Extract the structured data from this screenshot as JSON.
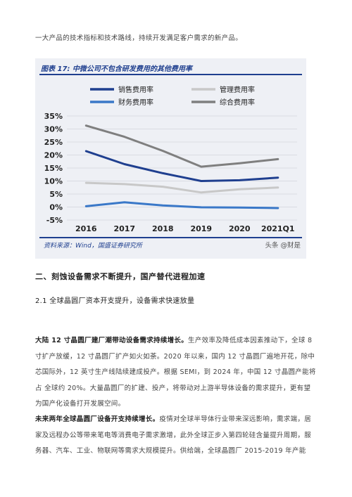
{
  "top_text": "一大产品的技术指标和技术路线，持续开发满足客户需求的新产品。",
  "figure": {
    "title": "图表 17: 中微公司不包含研发费用的其他费用率",
    "source": "资料来源：Wind，国盛证券研究所",
    "watermark": "头条 @财是"
  },
  "chart_data": {
    "type": "line",
    "categories": [
      "2016",
      "2017",
      "2018",
      "2019",
      "2020",
      "2021Q1"
    ],
    "y_ticks": [
      "35%",
      "30%",
      "25%",
      "20%",
      "15%",
      "10%",
      "5%",
      "0%",
      "-5%"
    ],
    "ylim": [
      -5,
      35
    ],
    "unit": "%",
    "legend_position": "top",
    "grid": true,
    "series": [
      {
        "name": "销售费用率",
        "color": "#1f3f8f",
        "values": [
          21.5,
          16.5,
          13.0,
          10.0,
          10.3,
          11.3
        ]
      },
      {
        "name": "管理费用率",
        "color": "#c8c8c8",
        "values": [
          9.3,
          8.8,
          7.8,
          5.6,
          6.8,
          7.5
        ]
      },
      {
        "name": "财务费用率",
        "color": "#3a78c8",
        "values": [
          0.3,
          1.8,
          0.6,
          -0.1,
          -0.2,
          -0.4
        ]
      },
      {
        "name": "综合费用率",
        "color": "#7f7f7f",
        "values": [
          31.3,
          27.0,
          21.6,
          15.5,
          16.8,
          18.4
        ]
      }
    ]
  },
  "section_heading": "二、刻蚀设备需求不断提升，国产替代进程加速",
  "subsection_heading": "2.1 全球晶圆厂资本开支提升，设备需求快速放量",
  "para1": {
    "lead": "大陆 12 寸晶圆厂建厂潮带动设备需求持续增长。",
    "body": "生产效率及降低成本因素推动下，全球 8 寸扩产放缓，12 寸晶圆厂扩产如火如荼。2020 年以来，国内 12 寸晶圆厂遍地开花，除中芯国际外，12 英寸生产线陆续建成投产。根据 SEMI，到 2024 年，中国 12 寸晶圆产能将占 全球约 20%。大量晶圆厂的扩建、投产，将带动对上游半导体设备的需求提升，更有望 为国产化设备打开发展空间。"
  },
  "para2": {
    "lead": "未来两年全球晶圆厂设备开支持续增长。",
    "body": "疫情对全球半导体行业带来深远影响，需求端，居家及远程办公等带来笔电等消费电子需求激增，此外全球正步入第四轮硅含量提升周期，服务器、汽车、工业、物联网等需求大规模提升。供给端，全球晶圆厂 2015-2019 年产能"
  }
}
